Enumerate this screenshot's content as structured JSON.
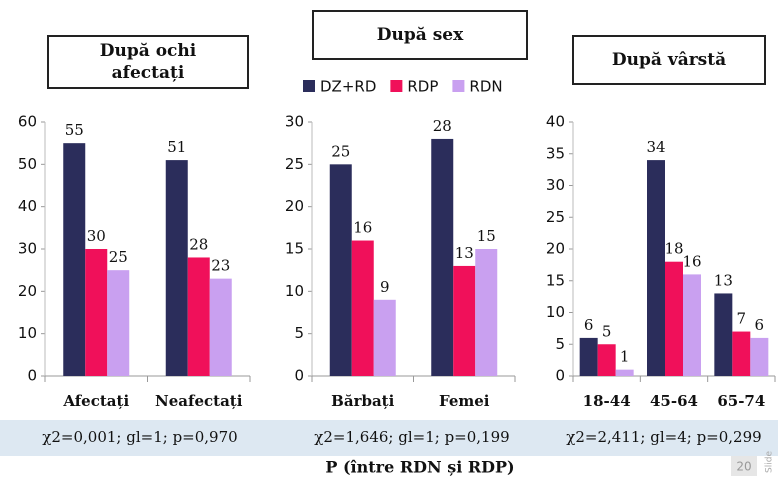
{
  "chart_data": [
    {
      "type": "bar",
      "title": "După ochi afectați",
      "categories": [
        "Afectați",
        "Neafectați"
      ],
      "series": [
        {
          "color": "#2b2d5b",
          "values": [
            55,
            51
          ]
        },
        {
          "color": "#f0105a",
          "values": [
            30,
            28
          ]
        },
        {
          "color": "#c9a0f0",
          "values": [
            25,
            23
          ]
        }
      ],
      "ylim": [
        0,
        60
      ],
      "yticks": [
        0,
        10,
        20,
        30,
        40,
        50,
        60
      ],
      "annotation": "χ2=0,001; gl=1; p=0,970"
    },
    {
      "type": "bar",
      "title": "După sex",
      "categories": [
        "Bărbați",
        "Femei"
      ],
      "series": [
        {
          "name": "DZ+RD",
          "color": "#2b2d5b",
          "values": [
            25,
            28
          ]
        },
        {
          "name": "RDP",
          "color": "#f0105a",
          "values": [
            16,
            13
          ]
        },
        {
          "name": "RDN",
          "color": "#c9a0f0",
          "values": [
            9,
            15
          ]
        }
      ],
      "ylim": [
        0,
        30
      ],
      "yticks": [
        0,
        5,
        10,
        15,
        20,
        25,
        30
      ],
      "annotation": "χ2=1,646; gl=1; p=0,199"
    },
    {
      "type": "bar",
      "title": "După vârstă",
      "categories": [
        "18-44",
        "45-64",
        "65-74"
      ],
      "series": [
        {
          "color": "#2b2d5b",
          "values": [
            6,
            34,
            13
          ]
        },
        {
          "color": "#f0105a",
          "values": [
            5,
            18,
            7
          ]
        },
        {
          "color": "#c9a0f0",
          "values": [
            1,
            16,
            6
          ]
        }
      ],
      "ylim": [
        0,
        40
      ],
      "yticks": [
        0,
        5,
        10,
        15,
        20,
        25,
        30,
        35,
        40
      ],
      "annotation": "χ2=2,411; gl=4; p=0,299"
    }
  ],
  "footer": "P (între RDN și RDP)",
  "slide_number": "20",
  "slide_label": "Slide"
}
